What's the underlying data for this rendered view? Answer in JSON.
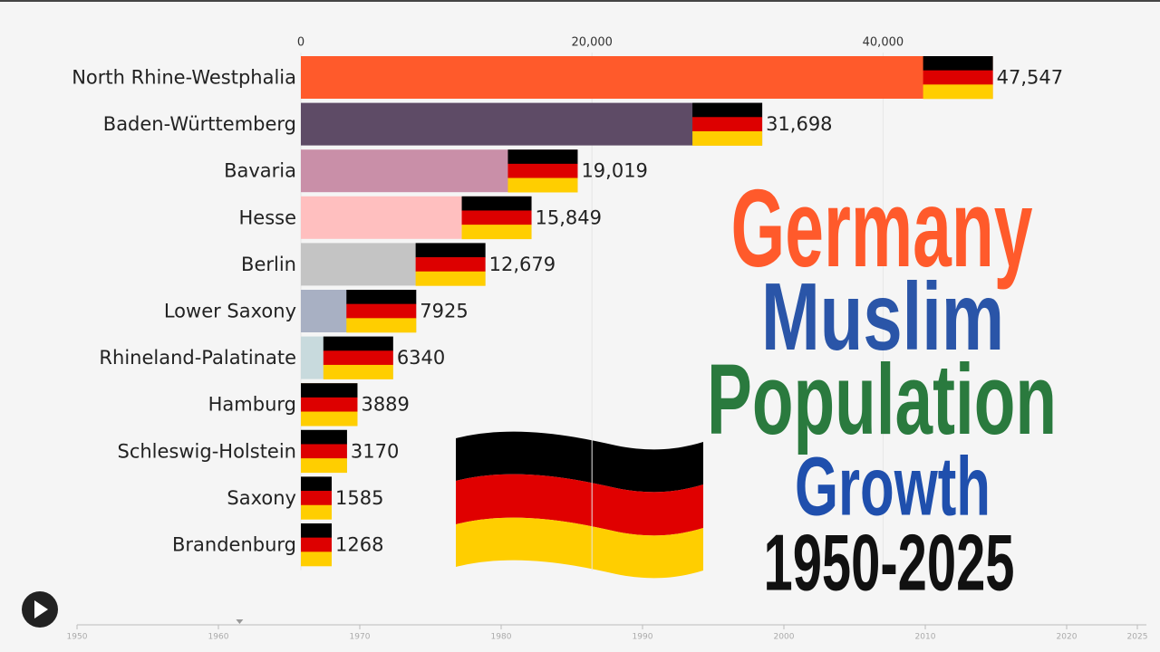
{
  "chart_data": {
    "type": "bar",
    "orientation": "horizontal",
    "title_lines": [
      {
        "text": "Germany",
        "color": "#ff5a2b"
      },
      {
        "text": "Muslim",
        "color": "#2a55a8"
      },
      {
        "text": "Population",
        "color": "#2a7a3e"
      },
      {
        "text": "Growth",
        "color": "#1f4fad"
      },
      {
        "text": "1950-2025",
        "color": "#111111"
      }
    ],
    "categories": [
      "North Rhine-Westphalia",
      "Baden-Württemberg",
      "Bavaria",
      "Hesse",
      "Berlin",
      "Lower Saxony",
      "Rhineland-Palatinate",
      "Hamburg",
      "Schleswig-Holstein",
      "Saxony",
      "Brandenburg"
    ],
    "values": [
      47547,
      31698,
      19019,
      15849,
      12679,
      7925,
      6340,
      3889,
      3170,
      1585,
      1268
    ],
    "value_labels": [
      "47,547",
      "31,698",
      "19,019",
      "15,849",
      "12,679",
      "7925",
      "6340",
      "3889",
      "3170",
      "1585",
      "1268"
    ],
    "colors": [
      "#ff5a2b",
      "#5e4b66",
      "#c98fa8",
      "#ffbfbf",
      "#c4c4c4",
      "#a8b0c3",
      "#c8dadd",
      "#e8a35a",
      "#9fc2a4",
      "#d9c27a",
      "#b7a6d1"
    ],
    "xlim": [
      0,
      50000
    ],
    "xticks": [
      0,
      {
        "value": 20000,
        "label": "20,000"
      },
      {
        "value": 40000,
        "label": "40,000"
      }
    ],
    "grid": true,
    "timeline": {
      "xlim": [
        1950,
        2025
      ],
      "ticks": [
        1950,
        1960,
        1970,
        1980,
        1990,
        2000,
        2010,
        2020,
        2025
      ],
      "position": 1961.5
    }
  }
}
